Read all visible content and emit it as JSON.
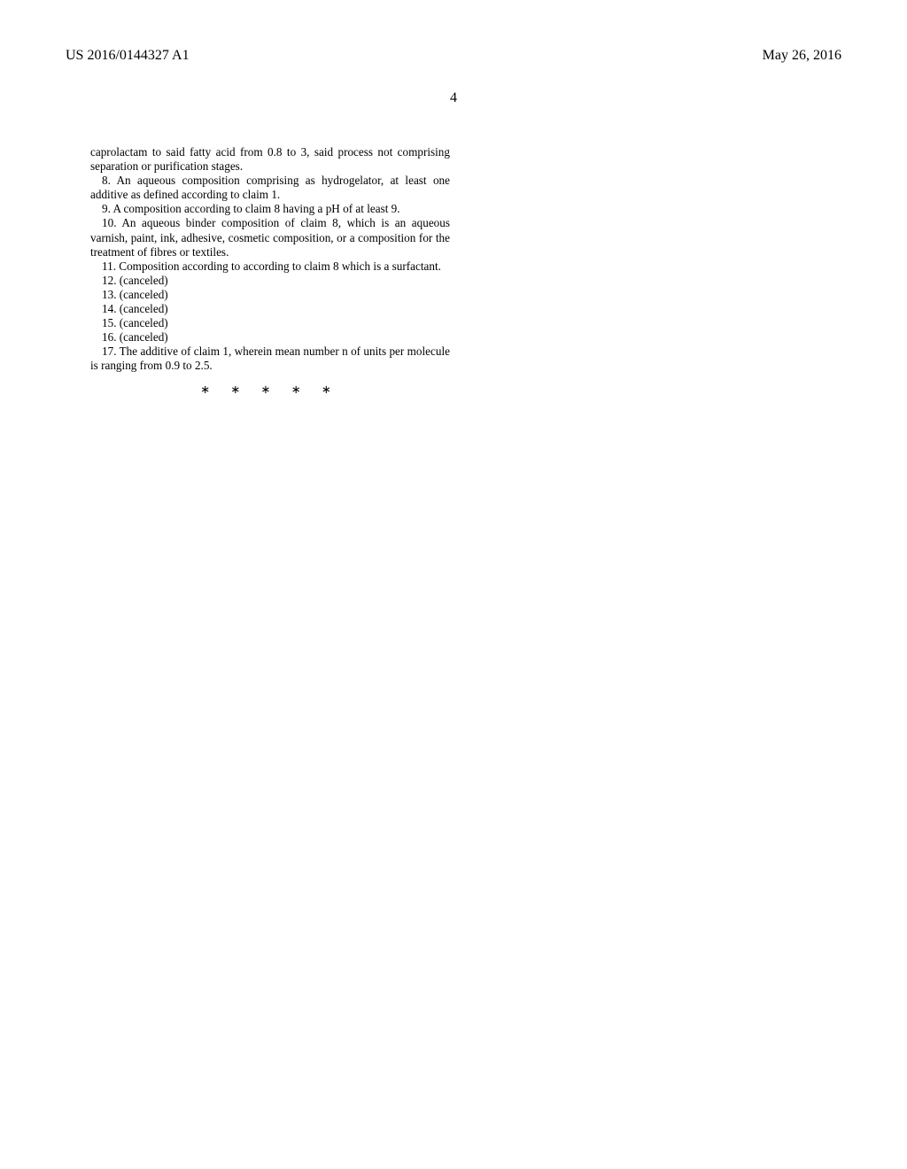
{
  "header": {
    "pub_number": "US 2016/0144327 A1",
    "pub_date": "May 26, 2016"
  },
  "page_number": "4",
  "body": {
    "cont": "caprolactam to said fatty acid from 0.8 to 3, said process not comprising separation or purification stages.",
    "c8": "8. An aqueous composition comprising as hydrogelator, at least one additive as defined according to claim 1.",
    "c9": "9. A composition according to claim 8 having a pH of at least 9.",
    "c10": "10. An aqueous binder composition of claim 8, which is an aqueous varnish, paint, ink, adhesive, cosmetic composition, or a composition for the treatment of fibres or textiles.",
    "c11": "11. Composition according to according to claim 8 which is a surfactant.",
    "c12": "12. (canceled)",
    "c13": "13. (canceled)",
    "c14": "14. (canceled)",
    "c15": "15. (canceled)",
    "c16": "16. (canceled)",
    "c17": "17. The additive of claim 1, wherein mean number n of units per molecule is ranging from 0.9 to 2.5.",
    "stars": "∗ ∗ ∗ ∗ ∗"
  }
}
